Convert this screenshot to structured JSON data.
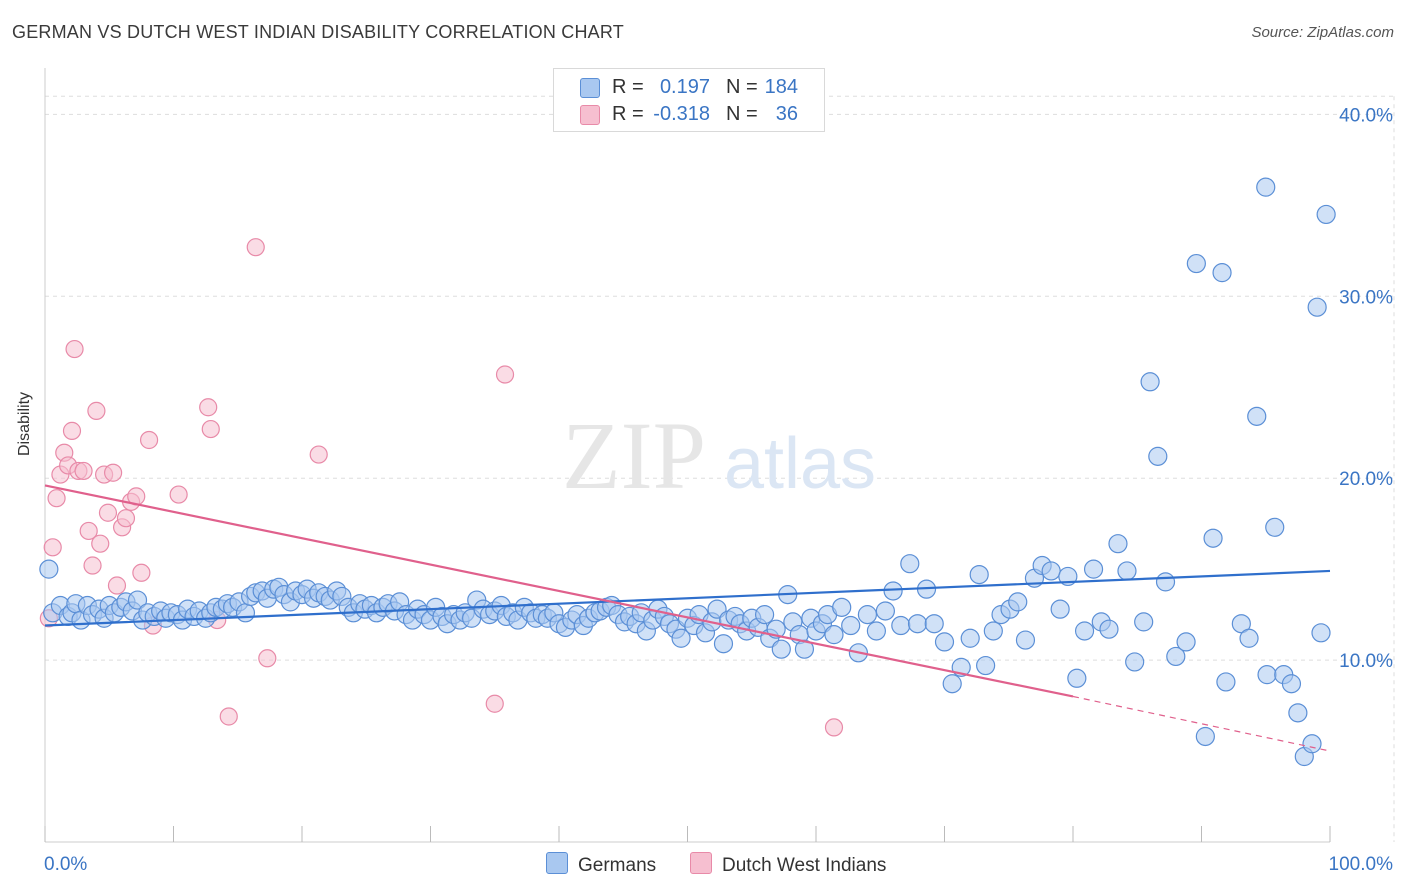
{
  "title": "GERMAN VS DUTCH WEST INDIAN DISABILITY CORRELATION CHART",
  "source": "Source: ZipAtlas.com",
  "watermark": {
    "zip": "ZIP",
    "atlas": "atlas"
  },
  "colors": {
    "german": "#5b8fd6",
    "german_fill": "#a9c8f0",
    "german_line": "#2f6fcc",
    "dutch": "#e88aa8",
    "dutch_fill": "#f6bfd0",
    "dutch_line": "#e0608c",
    "accent_text": "#3a75c4",
    "grid": "#dddddd"
  },
  "legend_top": [
    {
      "r_label": "R =",
      "r_value": "0.197",
      "n_label": "N =",
      "n_value": "184"
    },
    {
      "r_label": "R =",
      "r_value": "-0.318",
      "n_label": "N =",
      "n_value": "36"
    }
  ],
  "legend_bottom": [
    "Germans",
    "Dutch West Indians"
  ],
  "chart_data": {
    "type": "scatter",
    "title": "GERMAN VS DUTCH WEST INDIAN DISABILITY CORRELATION CHART",
    "xlabel": "",
    "ylabel": "Disability",
    "xlim": [
      0,
      100
    ],
    "ylim": [
      0,
      42
    ],
    "x_tick_labels": [
      "0.0%",
      "100.0%"
    ],
    "y_ticks": [
      10,
      20,
      30,
      40
    ],
    "y_tick_labels": [
      "10.0%",
      "20.0%",
      "30.0%",
      "40.0%"
    ],
    "grid": true,
    "legend": "top-center",
    "series": [
      {
        "name": "Germans",
        "r": 0.197,
        "n": 184,
        "trend": {
          "x0": 0,
          "y0": 11.9,
          "x1": 100,
          "y1": 14.9
        },
        "points": [
          [
            0.3,
            15.0
          ],
          [
            0.6,
            12.6
          ],
          [
            1.2,
            13.0
          ],
          [
            1.8,
            12.4
          ],
          [
            2.1,
            12.6
          ],
          [
            2.4,
            13.1
          ],
          [
            2.8,
            12.2
          ],
          [
            3.3,
            13.0
          ],
          [
            3.7,
            12.5
          ],
          [
            4.2,
            12.8
          ],
          [
            4.6,
            12.3
          ],
          [
            5.0,
            13.0
          ],
          [
            5.4,
            12.6
          ],
          [
            5.9,
            12.9
          ],
          [
            6.3,
            13.2
          ],
          [
            6.8,
            12.7
          ],
          [
            7.2,
            13.3
          ],
          [
            7.6,
            12.2
          ],
          [
            8.0,
            12.6
          ],
          [
            8.5,
            12.4
          ],
          [
            9.0,
            12.7
          ],
          [
            9.4,
            12.3
          ],
          [
            9.8,
            12.6
          ],
          [
            10.3,
            12.5
          ],
          [
            10.7,
            12.2
          ],
          [
            11.1,
            12.8
          ],
          [
            11.6,
            12.4
          ],
          [
            12.0,
            12.7
          ],
          [
            12.5,
            12.3
          ],
          [
            12.9,
            12.6
          ],
          [
            13.3,
            12.9
          ],
          [
            13.8,
            12.8
          ],
          [
            14.2,
            13.1
          ],
          [
            14.6,
            12.9
          ],
          [
            15.1,
            13.2
          ],
          [
            15.6,
            12.6
          ],
          [
            16.0,
            13.5
          ],
          [
            16.4,
            13.7
          ],
          [
            16.9,
            13.8
          ],
          [
            17.3,
            13.4
          ],
          [
            17.8,
            13.9
          ],
          [
            18.2,
            14.0
          ],
          [
            18.6,
            13.6
          ],
          [
            19.1,
            13.2
          ],
          [
            19.5,
            13.8
          ],
          [
            20.0,
            13.6
          ],
          [
            20.4,
            13.9
          ],
          [
            20.9,
            13.4
          ],
          [
            21.3,
            13.7
          ],
          [
            21.8,
            13.5
          ],
          [
            22.2,
            13.3
          ],
          [
            22.7,
            13.8
          ],
          [
            23.1,
            13.5
          ],
          [
            23.6,
            12.9
          ],
          [
            24.0,
            12.6
          ],
          [
            24.5,
            13.1
          ],
          [
            24.9,
            12.8
          ],
          [
            25.4,
            13.0
          ],
          [
            25.8,
            12.6
          ],
          [
            26.3,
            12.9
          ],
          [
            26.7,
            13.1
          ],
          [
            27.2,
            12.7
          ],
          [
            27.6,
            13.2
          ],
          [
            28.1,
            12.5
          ],
          [
            28.6,
            12.2
          ],
          [
            29.0,
            12.8
          ],
          [
            29.5,
            12.5
          ],
          [
            30.0,
            12.2
          ],
          [
            30.4,
            12.9
          ],
          [
            30.9,
            12.4
          ],
          [
            31.3,
            12.0
          ],
          [
            31.8,
            12.5
          ],
          [
            32.3,
            12.2
          ],
          [
            32.7,
            12.6
          ],
          [
            33.2,
            12.3
          ],
          [
            33.6,
            13.3
          ],
          [
            34.1,
            12.8
          ],
          [
            34.6,
            12.5
          ],
          [
            35.0,
            12.7
          ],
          [
            35.5,
            13.0
          ],
          [
            35.9,
            12.4
          ],
          [
            36.4,
            12.6
          ],
          [
            36.8,
            12.2
          ],
          [
            37.3,
            12.9
          ],
          [
            37.8,
            12.6
          ],
          [
            38.2,
            12.3
          ],
          [
            38.7,
            12.5
          ],
          [
            39.1,
            12.3
          ],
          [
            39.6,
            12.6
          ],
          [
            40.0,
            12.0
          ],
          [
            40.5,
            11.8
          ],
          [
            41.0,
            12.2
          ],
          [
            41.4,
            12.5
          ],
          [
            41.9,
            11.9
          ],
          [
            42.3,
            12.3
          ],
          [
            42.8,
            12.6
          ],
          [
            43.2,
            12.7
          ],
          [
            43.7,
            12.9
          ],
          [
            44.1,
            13.0
          ],
          [
            44.6,
            12.5
          ],
          [
            45.1,
            12.1
          ],
          [
            45.5,
            12.4
          ],
          [
            46.0,
            12.0
          ],
          [
            46.4,
            12.6
          ],
          [
            46.8,
            11.6
          ],
          [
            47.3,
            12.2
          ],
          [
            47.7,
            12.8
          ],
          [
            48.2,
            12.4
          ],
          [
            48.6,
            12.0
          ],
          [
            49.1,
            11.7
          ],
          [
            49.5,
            11.2
          ],
          [
            50.0,
            12.3
          ],
          [
            50.5,
            11.9
          ],
          [
            50.9,
            12.5
          ],
          [
            51.4,
            11.5
          ],
          [
            51.9,
            12.1
          ],
          [
            52.3,
            12.8
          ],
          [
            52.8,
            10.9
          ],
          [
            53.2,
            12.2
          ],
          [
            53.7,
            12.4
          ],
          [
            54.1,
            12.0
          ],
          [
            54.6,
            11.6
          ],
          [
            55.0,
            12.3
          ],
          [
            55.5,
            11.8
          ],
          [
            56.0,
            12.5
          ],
          [
            56.4,
            11.2
          ],
          [
            56.9,
            11.7
          ],
          [
            57.3,
            10.6
          ],
          [
            57.8,
            13.6
          ],
          [
            58.2,
            12.1
          ],
          [
            58.7,
            11.4
          ],
          [
            59.1,
            10.6
          ],
          [
            59.6,
            12.3
          ],
          [
            60.0,
            11.6
          ],
          [
            60.5,
            12.0
          ],
          [
            60.9,
            12.5
          ],
          [
            61.4,
            11.4
          ],
          [
            62.0,
            12.9
          ],
          [
            62.7,
            11.9
          ],
          [
            63.3,
            10.4
          ],
          [
            64.0,
            12.5
          ],
          [
            64.7,
            11.6
          ],
          [
            65.4,
            12.7
          ],
          [
            66.0,
            13.8
          ],
          [
            66.6,
            11.9
          ],
          [
            67.3,
            15.3
          ],
          [
            67.9,
            12.0
          ],
          [
            68.6,
            13.9
          ],
          [
            69.2,
            12.0
          ],
          [
            70.0,
            11.0
          ],
          [
            70.6,
            8.7
          ],
          [
            71.3,
            9.6
          ],
          [
            72.0,
            11.2
          ],
          [
            72.7,
            14.7
          ],
          [
            73.2,
            9.7
          ],
          [
            73.8,
            11.6
          ],
          [
            74.4,
            12.5
          ],
          [
            75.1,
            12.8
          ],
          [
            75.7,
            13.2
          ],
          [
            76.3,
            11.1
          ],
          [
            77.0,
            14.5
          ],
          [
            77.6,
            15.2
          ],
          [
            78.3,
            14.9
          ],
          [
            79.0,
            12.8
          ],
          [
            79.6,
            14.6
          ],
          [
            80.3,
            9.0
          ],
          [
            80.9,
            11.6
          ],
          [
            81.6,
            15.0
          ],
          [
            82.2,
            12.1
          ],
          [
            82.8,
            11.7
          ],
          [
            83.5,
            16.4
          ],
          [
            84.2,
            14.9
          ],
          [
            84.8,
            9.9
          ],
          [
            85.5,
            12.1
          ],
          [
            86.0,
            25.3
          ],
          [
            86.6,
            21.2
          ],
          [
            87.2,
            14.3
          ],
          [
            88.0,
            10.2
          ],
          [
            88.8,
            11.0
          ],
          [
            89.6,
            31.8
          ],
          [
            90.3,
            5.8
          ],
          [
            90.9,
            16.7
          ],
          [
            91.6,
            31.3
          ],
          [
            91.9,
            8.8
          ],
          [
            93.1,
            12.0
          ],
          [
            93.7,
            11.2
          ],
          [
            94.3,
            23.4
          ],
          [
            95.1,
            9.2
          ],
          [
            95.7,
            17.3
          ],
          [
            96.4,
            9.2
          ],
          [
            97.0,
            8.7
          ],
          [
            97.5,
            7.1
          ],
          [
            98.0,
            4.7
          ],
          [
            98.6,
            5.4
          ],
          [
            99.3,
            11.5
          ],
          [
            99.0,
            29.4
          ],
          [
            99.7,
            34.5
          ],
          [
            95.0,
            36.0
          ]
        ]
      },
      {
        "name": "Dutch West Indians",
        "r": -0.318,
        "n": 36,
        "trend": {
          "x0": 0,
          "y0": 19.6,
          "x1": 80,
          "y1": 8.0
        },
        "trend_dashed": {
          "x0": 80,
          "y0": 8.0,
          "x1": 100,
          "y1": 5.0
        },
        "points": [
          [
            0.3,
            12.3
          ],
          [
            0.6,
            16.2
          ],
          [
            0.9,
            18.9
          ],
          [
            1.2,
            20.2
          ],
          [
            1.5,
            21.4
          ],
          [
            1.8,
            20.7
          ],
          [
            2.1,
            22.6
          ],
          [
            2.3,
            27.1
          ],
          [
            2.6,
            20.4
          ],
          [
            3.0,
            20.4
          ],
          [
            3.4,
            17.1
          ],
          [
            3.7,
            15.2
          ],
          [
            4.0,
            23.7
          ],
          [
            4.3,
            16.4
          ],
          [
            4.6,
            20.2
          ],
          [
            4.9,
            18.1
          ],
          [
            5.3,
            20.3
          ],
          [
            5.6,
            14.1
          ],
          [
            6.0,
            17.3
          ],
          [
            6.3,
            17.8
          ],
          [
            6.7,
            18.7
          ],
          [
            7.1,
            19.0
          ],
          [
            7.5,
            14.8
          ],
          [
            8.1,
            22.1
          ],
          [
            8.4,
            11.9
          ],
          [
            10.4,
            19.1
          ],
          [
            12.7,
            23.9
          ],
          [
            12.9,
            22.7
          ],
          [
            13.4,
            12.2
          ],
          [
            14.3,
            6.9
          ],
          [
            16.4,
            32.7
          ],
          [
            17.3,
            10.1
          ],
          [
            21.3,
            21.3
          ],
          [
            35.0,
            7.6
          ],
          [
            35.8,
            25.7
          ],
          [
            61.4,
            6.3
          ]
        ]
      }
    ]
  }
}
